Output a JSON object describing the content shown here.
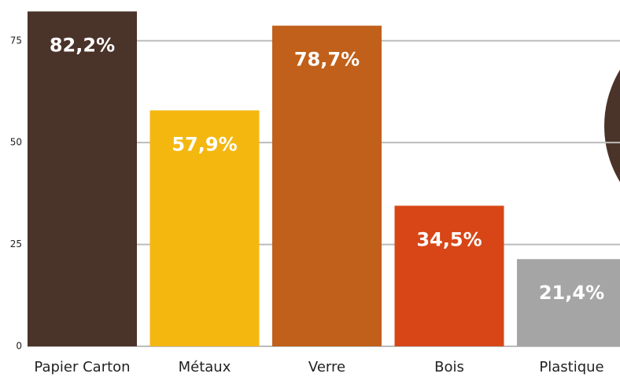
{
  "chart_data": {
    "type": "bar",
    "categories": [
      "Papier Carton",
      "Métaux",
      "Verre",
      "Bois",
      "Plastique"
    ],
    "values": [
      82.2,
      57.9,
      78.7,
      34.5,
      21.4
    ],
    "value_labels": [
      "82,2%",
      "57,9%",
      "78,7%",
      "34,5%",
      "21,4%"
    ],
    "colors": [
      "#4a3329",
      "#f4b710",
      "#c1601a",
      "#d84617",
      "#a5a5a5"
    ],
    "ylim": [
      0,
      85
    ],
    "yticks": [
      0,
      25,
      50,
      75
    ],
    "grid": true
  }
}
